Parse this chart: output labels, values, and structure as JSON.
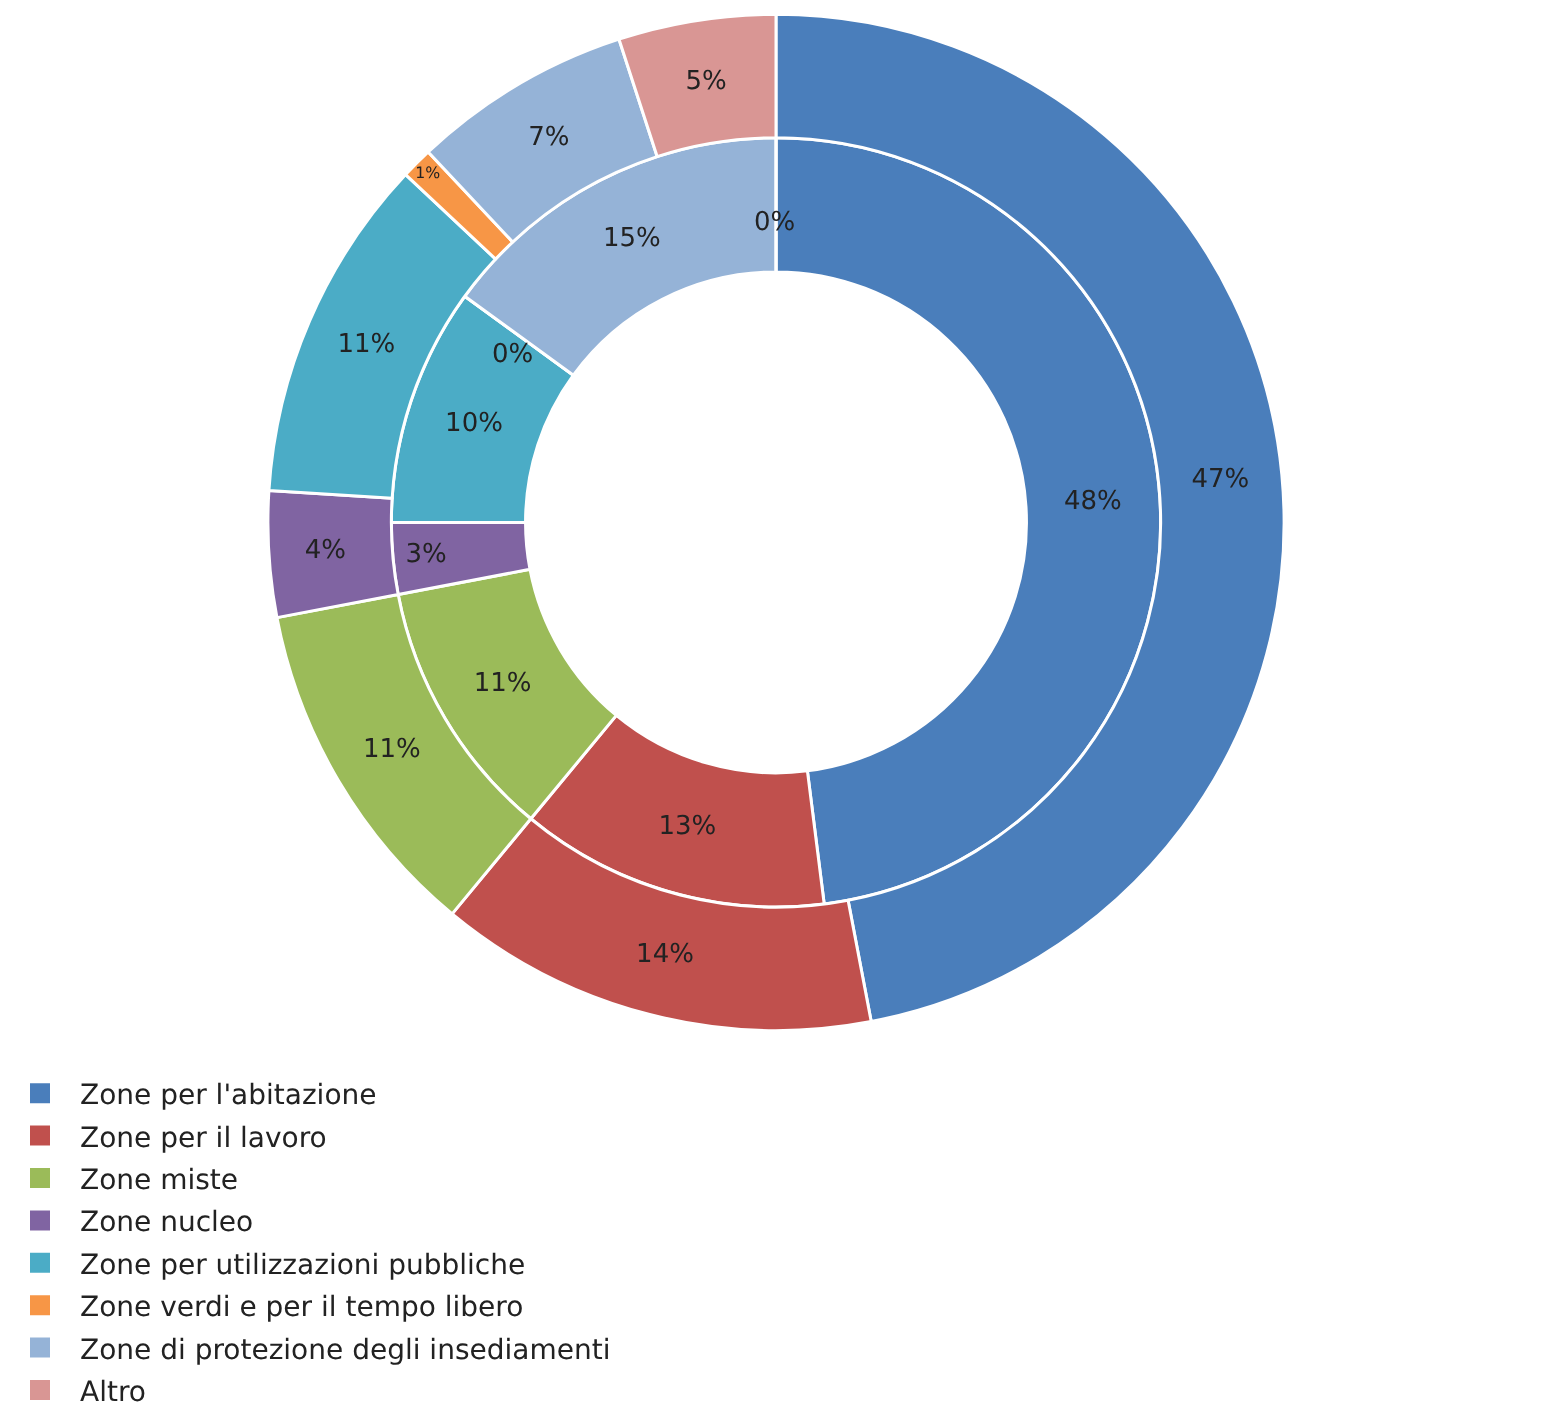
{
  "chart_data": {
    "type": "donut",
    "categories": [
      "Zone per l'abitazione",
      "Zone per il lavoro",
      "Zone miste",
      "Zone nucleo",
      "Zone per utilizzazioni pubbliche",
      "Zone verdi e per il tempo libero",
      "Zone di protezione degli insediamenti",
      "Altro"
    ],
    "colors": [
      "#4a7ebb",
      "#c0504d",
      "#9bbb59",
      "#8064a2",
      "#4bacc6",
      "#f79646",
      "#95b3d7",
      "#d99694"
    ],
    "series": [
      {
        "values": [
          48,
          13,
          11,
          3,
          10,
          0,
          15,
          0
        ],
        "value_labels": [
          "48%",
          "13%",
          "11%",
          "3%",
          "10%",
          "0%",
          "15%",
          "0%"
        ]
      },
      {
        "values": [
          47,
          14,
          11,
          4,
          11,
          1,
          7,
          5
        ],
        "value_labels": [
          "47%",
          "14%",
          "11%",
          "4%",
          "11%",
          "1%",
          "7%",
          "5%"
        ]
      }
    ],
    "legend": "bottom"
  }
}
